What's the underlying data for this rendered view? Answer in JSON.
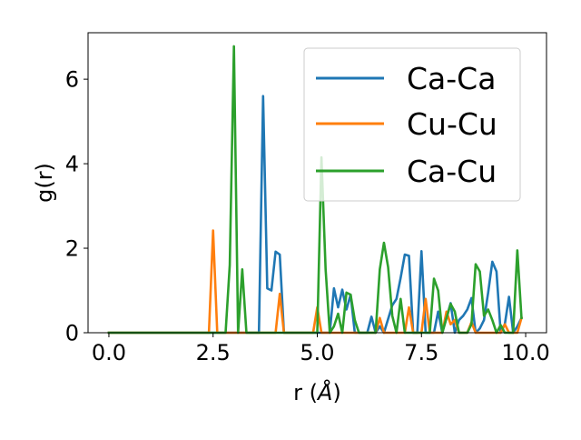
{
  "chart_data": {
    "type": "line",
    "xlabel": "r (Å)",
    "xlabel_prefix": "r (",
    "xlabel_unit": "Å",
    "xlabel_suffix": ")",
    "ylabel": "g(r)",
    "xlim": [
      -0.5,
      10.5
    ],
    "ylim": [
      0,
      7.1
    ],
    "xticks": [
      0.0,
      2.5,
      5.0,
      7.5,
      10.0
    ],
    "xtick_labels": [
      "0.0",
      "2.5",
      "5.0",
      "7.5",
      "10.0"
    ],
    "yticks": [
      0,
      2,
      4,
      6
    ],
    "ytick_labels": [
      "0",
      "2",
      "4",
      "6"
    ],
    "grid": false,
    "legend_position": "top-right",
    "series": [
      {
        "name": "Ca-Ca",
        "color": "#1f77b4",
        "points": [
          [
            0.0,
            0
          ],
          [
            3.5,
            0
          ],
          [
            3.6,
            0
          ],
          [
            3.7,
            5.6
          ],
          [
            3.8,
            1.05
          ],
          [
            3.9,
            1.0
          ],
          [
            4.0,
            1.92
          ],
          [
            4.1,
            1.85
          ],
          [
            4.2,
            0
          ],
          [
            5.3,
            0
          ],
          [
            5.4,
            1.05
          ],
          [
            5.5,
            0.6
          ],
          [
            5.6,
            1.02
          ],
          [
            5.7,
            0.55
          ],
          [
            5.8,
            0.9
          ],
          [
            5.9,
            0
          ],
          [
            6.2,
            0
          ],
          [
            6.3,
            0.38
          ],
          [
            6.4,
            0
          ],
          [
            6.5,
            0.15
          ],
          [
            6.6,
            0
          ],
          [
            6.8,
            0.65
          ],
          [
            6.9,
            0.8
          ],
          [
            7.0,
            1.3
          ],
          [
            7.1,
            1.85
          ],
          [
            7.2,
            1.82
          ],
          [
            7.3,
            0
          ],
          [
            7.4,
            0
          ],
          [
            7.5,
            1.93
          ],
          [
            7.6,
            0
          ],
          [
            7.8,
            0
          ],
          [
            7.9,
            0.5
          ],
          [
            8.0,
            0
          ],
          [
            8.1,
            0.35
          ],
          [
            8.2,
            0.7
          ],
          [
            8.3,
            0
          ],
          [
            8.4,
            0.3
          ],
          [
            8.5,
            0.4
          ],
          [
            8.6,
            0.55
          ],
          [
            8.7,
            0.82
          ],
          [
            8.8,
            0
          ],
          [
            8.9,
            0.1
          ],
          [
            9.0,
            0.3
          ],
          [
            9.1,
            0.95
          ],
          [
            9.2,
            1.68
          ],
          [
            9.3,
            1.45
          ],
          [
            9.4,
            0
          ],
          [
            9.5,
            0.2
          ],
          [
            9.6,
            0.85
          ],
          [
            9.7,
            0
          ],
          [
            9.8,
            0.15
          ],
          [
            9.9,
            0.35
          ]
        ]
      },
      {
        "name": "Cu-Cu",
        "color": "#ff7f0e",
        "points": [
          [
            0.0,
            0
          ],
          [
            2.4,
            0
          ],
          [
            2.5,
            2.42
          ],
          [
            2.6,
            0
          ],
          [
            4.0,
            0
          ],
          [
            4.1,
            0.92
          ],
          [
            4.2,
            0
          ],
          [
            4.9,
            0
          ],
          [
            5.0,
            0.6
          ],
          [
            5.1,
            0
          ],
          [
            6.4,
            0
          ],
          [
            6.5,
            0.35
          ],
          [
            6.6,
            0
          ],
          [
            7.1,
            0
          ],
          [
            7.2,
            0.6
          ],
          [
            7.3,
            0
          ],
          [
            7.5,
            0
          ],
          [
            7.6,
            0.8
          ],
          [
            7.7,
            0
          ],
          [
            8.0,
            0
          ],
          [
            8.1,
            0.5
          ],
          [
            8.2,
            0.2
          ],
          [
            8.3,
            0.3
          ],
          [
            8.4,
            0
          ],
          [
            8.6,
            0
          ],
          [
            8.7,
            0.25
          ],
          [
            8.8,
            0
          ],
          [
            9.4,
            0
          ],
          [
            9.5,
            0.2
          ],
          [
            9.6,
            0
          ],
          [
            9.8,
            0
          ],
          [
            9.9,
            0.35
          ]
        ]
      },
      {
        "name": "Ca-Cu",
        "color": "#2ca02c",
        "points": [
          [
            0.0,
            0
          ],
          [
            2.8,
            0
          ],
          [
            2.9,
            1.6
          ],
          [
            3.0,
            6.78
          ],
          [
            3.1,
            0
          ],
          [
            3.2,
            1.5
          ],
          [
            3.3,
            0
          ],
          [
            5.0,
            0
          ],
          [
            5.1,
            4.15
          ],
          [
            5.2,
            1.5
          ],
          [
            5.3,
            0
          ],
          [
            5.4,
            0.15
          ],
          [
            5.5,
            0.45
          ],
          [
            5.6,
            0
          ],
          [
            5.7,
            0.95
          ],
          [
            5.8,
            0.9
          ],
          [
            5.9,
            0.3
          ],
          [
            6.0,
            0
          ],
          [
            6.4,
            0
          ],
          [
            6.5,
            1.5
          ],
          [
            6.6,
            2.13
          ],
          [
            6.7,
            1.55
          ],
          [
            6.8,
            0.4
          ],
          [
            6.9,
            0
          ],
          [
            7.0,
            0.8
          ],
          [
            7.1,
            0
          ],
          [
            7.7,
            0
          ],
          [
            7.8,
            1.28
          ],
          [
            7.9,
            1.0
          ],
          [
            8.0,
            0
          ],
          [
            8.1,
            0.35
          ],
          [
            8.2,
            0.68
          ],
          [
            8.3,
            0.5
          ],
          [
            8.4,
            0
          ],
          [
            8.6,
            0
          ],
          [
            8.7,
            0.2
          ],
          [
            8.8,
            1.62
          ],
          [
            8.9,
            1.45
          ],
          [
            9.0,
            0.4
          ],
          [
            9.1,
            0.55
          ],
          [
            9.2,
            0.3
          ],
          [
            9.3,
            0
          ],
          [
            9.4,
            0.18
          ],
          [
            9.5,
            0
          ],
          [
            9.7,
            0
          ],
          [
            9.8,
            1.95
          ],
          [
            9.9,
            0.35
          ]
        ]
      }
    ]
  }
}
